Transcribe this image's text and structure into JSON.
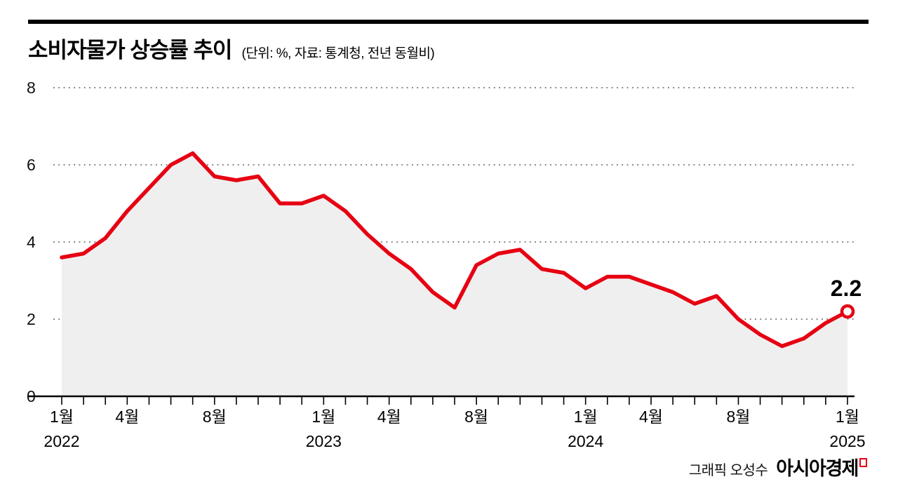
{
  "header": {
    "title": "소비자물가 상승률 추이",
    "subtitle": "(단위: %, 자료: 통계청, 전년 동월비)"
  },
  "chart_data": {
    "type": "area",
    "title": "소비자물가 상승률 추이",
    "unit": "%",
    "source": "통계청, 전년 동월비",
    "ylim": [
      0,
      8
    ],
    "yticks": [
      0,
      2,
      4,
      6,
      8
    ],
    "grid": "dotted-horizontal",
    "line_color": "#e60012",
    "fill_color": "#efefef",
    "months": [
      "2022-01",
      "2022-02",
      "2022-03",
      "2022-04",
      "2022-05",
      "2022-06",
      "2022-07",
      "2022-08",
      "2022-09",
      "2022-10",
      "2022-11",
      "2022-12",
      "2023-01",
      "2023-02",
      "2023-03",
      "2023-04",
      "2023-05",
      "2023-06",
      "2023-07",
      "2023-08",
      "2023-09",
      "2023-10",
      "2023-11",
      "2023-12",
      "2024-01",
      "2024-02",
      "2024-03",
      "2024-04",
      "2024-05",
      "2024-06",
      "2024-07",
      "2024-08",
      "2024-09",
      "2024-10",
      "2024-11",
      "2024-12",
      "2025-01"
    ],
    "values": [
      3.6,
      3.7,
      4.1,
      4.8,
      5.4,
      6.0,
      6.3,
      5.7,
      5.6,
      5.7,
      5.0,
      5.0,
      5.2,
      4.8,
      4.2,
      3.7,
      3.3,
      2.7,
      2.3,
      3.4,
      3.7,
      3.8,
      3.3,
      3.2,
      2.8,
      3.1,
      3.1,
      2.9,
      2.7,
      2.4,
      2.6,
      2.0,
      1.6,
      1.3,
      1.5,
      1.9,
      2.2
    ],
    "x_ticks": [
      {
        "label": "1월",
        "year": "2022",
        "index": 0
      },
      {
        "label": "4월",
        "index": 3
      },
      {
        "label": "8월",
        "index": 7
      },
      {
        "label": "1월",
        "year": "2023",
        "index": 12
      },
      {
        "label": "4월",
        "index": 15
      },
      {
        "label": "8월",
        "index": 19
      },
      {
        "label": "1월",
        "year": "2024",
        "index": 24
      },
      {
        "label": "4월",
        "index": 27
      },
      {
        "label": "8월",
        "index": 31
      },
      {
        "label": "1월",
        "year": "2025",
        "index": 36
      }
    ],
    "end_label": "2.2"
  },
  "footer": {
    "credit": "그래픽 오성수",
    "brand": "아시아경제"
  }
}
